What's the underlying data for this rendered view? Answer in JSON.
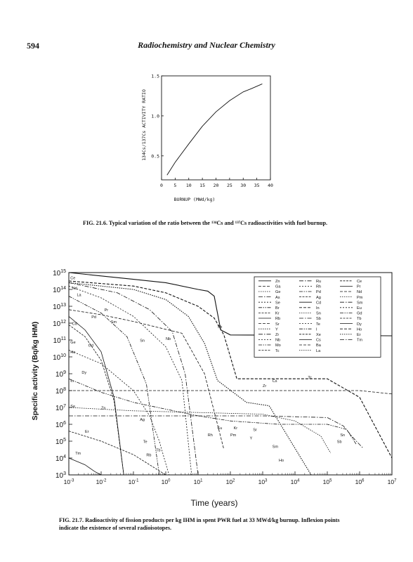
{
  "header": {
    "page_number": "594",
    "running_title": "Radiochemistry and Nuclear Chemistry"
  },
  "captions": {
    "fig21_6": "FIG. 21.6. Typical variation of the ratio between the ¹³⁴Cs and ¹³⁷Cs radioactivities with fuel burnup.",
    "fig21_7": "FIG. 21.7. Radioactivity of fission products per kg IHM in spent PWR fuel at 33 MWd/kg burnup. Inflexion points indicate the existence of several radioisotopes."
  },
  "chart_data": [
    {
      "type": "line",
      "title": "",
      "xlabel": "BURNUP (MWd/kg)",
      "ylabel": "134Cs/137Cs ACTIVITY RATIO",
      "x_ticks": [
        "0",
        "5",
        "10",
        "15",
        "20",
        "25",
        "30",
        "35",
        "40"
      ],
      "y_ticks": [
        "0.5",
        "1.0",
        "1.5"
      ],
      "xlim": [
        0,
        40
      ],
      "ylim": [
        0.2,
        1.5
      ],
      "series": [
        {
          "x": [
            2,
            5,
            10,
            15,
            20,
            25,
            30,
            33,
            35,
            37
          ],
          "y": [
            0.26,
            0.42,
            0.65,
            0.87,
            1.05,
            1.19,
            1.3,
            1.34,
            1.37,
            1.4
          ]
        }
      ]
    },
    {
      "type": "line",
      "title": "",
      "xlabel": "Time (years)",
      "ylabel": "Specific activity (Bq/kg IHM)",
      "x_scale": "log",
      "y_scale": "log",
      "x_ticks": [
        "10-3",
        "10-2",
        "10-1",
        "100",
        "101",
        "102",
        "103",
        "104",
        "105",
        "106",
        "107"
      ],
      "y_ticks": [
        "103",
        "104",
        "105",
        "106",
        "107",
        "108",
        "109",
        "1010",
        "1011",
        "1012",
        "1013",
        "1014",
        "1015"
      ],
      "xlim": [
        -3,
        7
      ],
      "ylim": [
        3,
        15
      ],
      "legend_position": "top-right",
      "legend": [
        [
          "Zn",
          "Ru",
          "Ce"
        ],
        [
          "Ga",
          "Rh",
          "Pr"
        ],
        [
          "Ge",
          "Pd",
          "Nd"
        ],
        [
          "As",
          "Ag",
          "Pm"
        ],
        [
          "Se",
          "Cd",
          "Sm"
        ],
        [
          "Br",
          "In",
          "Eu"
        ],
        [
          "Kr",
          "Sn",
          "Gd"
        ],
        [
          "Rb",
          "Sb",
          "Tb"
        ],
        [
          "Sr",
          "Te",
          "Dy"
        ],
        [
          "Y",
          "I",
          "Ho"
        ],
        [
          "Zr",
          "Xe",
          "Er"
        ],
        [
          "Nb",
          "Cs",
          "Tm"
        ],
        [
          "Mo",
          "Ba",
          ""
        ],
        [
          "Tc",
          "La",
          ""
        ]
      ],
      "annotations": [
        "Ce",
        "Nd",
        "La",
        "Pr",
        "Pd",
        "Cd",
        "Sm",
        "Ge",
        "Ho",
        "Gd",
        "Dy",
        "In",
        "Se",
        "Er",
        "Tm",
        "Zn",
        "Sn",
        "Nb",
        "Cs",
        "Sb",
        "Zr",
        "Tc",
        "Ag",
        "Eu",
        "Kr",
        "Rh",
        "Pm",
        "Sr",
        "Y",
        "Te",
        "Tb",
        "Rb",
        "Sm",
        "Ho",
        "Sn",
        "Sb"
      ],
      "series": [
        {
          "x": [
            -3,
            -1,
            0,
            1,
            1.3,
            1.5,
            1.7,
            2,
            7
          ],
          "y": [
            15,
            14.6,
            14.4,
            14.0,
            13.9,
            13.6,
            11.6,
            11.3,
            11.25
          ]
        },
        {
          "x": [
            -3,
            -1,
            0,
            1,
            1.5,
            1.8,
            2.2,
            5,
            6,
            7
          ],
          "y": [
            14.5,
            14.2,
            13.8,
            13.0,
            12.3,
            11.3,
            8.7,
            8.7,
            7.6,
            4.0
          ]
        },
        {
          "x": [
            -3,
            -1,
            0,
            0.7,
            1.2,
            1.6,
            2.5,
            3.2,
            4.5
          ],
          "y": [
            14.4,
            14.0,
            13.4,
            12.4,
            10.8,
            8.6,
            7.3,
            7.1,
            3.0
          ]
        },
        {
          "x": [
            -3,
            -1.5,
            -0.5,
            0.2,
            0.6,
            1.0
          ],
          "y": [
            14.4,
            13.8,
            12.8,
            11.5,
            9.0,
            3.0
          ]
        },
        {
          "x": [
            -3,
            -2,
            -1,
            0,
            0.5,
            0.8
          ],
          "y": [
            14.2,
            13.5,
            12.4,
            10.6,
            8.6,
            3.0
          ]
        },
        {
          "x": [
            -3,
            -2,
            -1.2,
            -0.6,
            -0.2
          ],
          "y": [
            13.6,
            12.6,
            11.2,
            8.4,
            3.0
          ]
        },
        {
          "x": [
            -3,
            -2.5,
            -2,
            -1.6,
            -1.3
          ],
          "y": [
            11.9,
            11.2,
            9.8,
            7.4,
            3.0
          ]
        },
        {
          "x": [
            -3,
            -2.5,
            -2,
            -1.6,
            -1.3
          ],
          "y": [
            12.4,
            11.6,
            10.3,
            7.6,
            3.0
          ]
        },
        {
          "x": [
            -3,
            -2,
            -1,
            0.5,
            1.2,
            1.8
          ],
          "y": [
            12.8,
            12.5,
            12.1,
            11.4,
            9.0,
            4.5
          ]
        },
        {
          "x": [
            -3,
            -1,
            1,
            3,
            4,
            4.8,
            5.1
          ],
          "y": [
            7.0,
            6.8,
            6.7,
            6.6,
            6.2,
            5.3,
            4.3
          ]
        },
        {
          "x": [
            -3,
            -1,
            1,
            3,
            5,
            5.5,
            5.8,
            6.1
          ],
          "y": [
            6.5,
            6.5,
            6.5,
            6.5,
            6.4,
            5.9,
            5.2,
            4.6
          ]
        },
        {
          "x": [
            -3,
            -2,
            -1,
            -0.5,
            -0.2,
            0.1
          ],
          "y": [
            10.4,
            9.6,
            8.0,
            6.5,
            5.0,
            3.0
          ]
        },
        {
          "x": [
            -3,
            -2,
            -1,
            0,
            1,
            2,
            3.5,
            5,
            5.6,
            5.9
          ],
          "y": [
            8.7,
            7.9,
            7.3,
            6.9,
            6.5,
            6.2,
            6.0,
            6.0,
            5.7,
            4.8
          ]
        },
        {
          "x": [
            -3,
            -2,
            -1,
            0,
            1,
            2,
            2.6
          ],
          "y": [
            5.6,
            5.0,
            4.2,
            3.0,
            3.0,
            3.0,
            3.0
          ]
        },
        {
          "x": [
            -3,
            -2.5,
            -2.2,
            -2.0
          ],
          "y": [
            4.0,
            3.6,
            3.2,
            3.0
          ]
        },
        {
          "x": [
            -3,
            -2,
            -1,
            0,
            1,
            2,
            3,
            4,
            5,
            6,
            7
          ],
          "y": [
            8.0,
            8.0,
            8.0,
            8.0,
            8.0,
            8.0,
            8.0,
            8.0,
            8.0,
            8.0,
            7.8
          ]
        }
      ]
    }
  ]
}
